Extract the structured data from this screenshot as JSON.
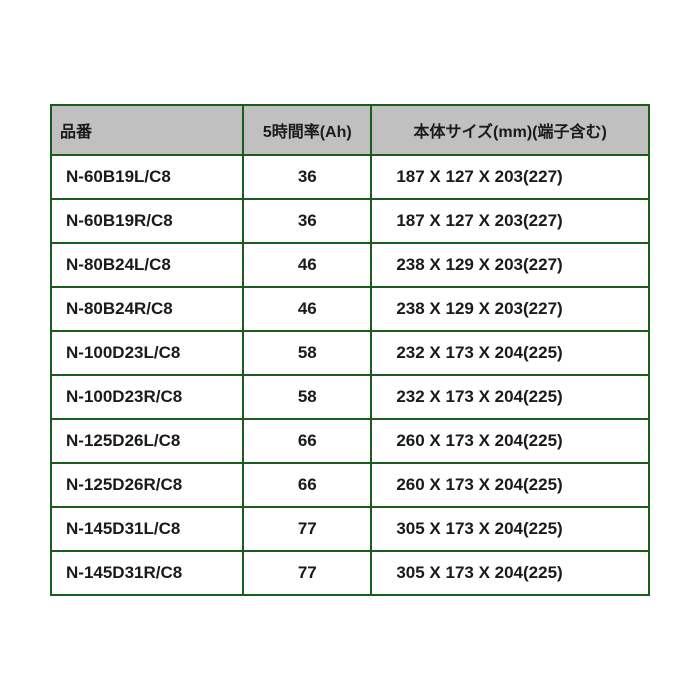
{
  "table": {
    "columns": [
      {
        "label": "品番",
        "class": "col-part"
      },
      {
        "label": "5時間率(Ah)",
        "class": "col-rate"
      },
      {
        "label": "本体サイズ(mm)(端子含む)",
        "class": "col-size"
      }
    ],
    "rows": [
      {
        "part": "N-60B19L/C8",
        "rate": "36",
        "size": "187 X 127 X 203(227)"
      },
      {
        "part": "N-60B19R/C8",
        "rate": "36",
        "size": "187 X 127 X 203(227)"
      },
      {
        "part": "N-80B24L/C8",
        "rate": "46",
        "size": "238 X 129 X 203(227)"
      },
      {
        "part": "N-80B24R/C8",
        "rate": "46",
        "size": "238 X 129 X 203(227)"
      },
      {
        "part": "N-100D23L/C8",
        "rate": "58",
        "size": "232 X 173 X 204(225)"
      },
      {
        "part": "N-100D23R/C8",
        "rate": "58",
        "size": "232 X 173 X 204(225)"
      },
      {
        "part": "N-125D26L/C8",
        "rate": "66",
        "size": "260 X 173 X 204(225)"
      },
      {
        "part": "N-125D26R/C8",
        "rate": "66",
        "size": "260 X 173 X 204(225)"
      },
      {
        "part": "N-145D31L/C8",
        "rate": "77",
        "size": "305 X 173 X 204(225)"
      },
      {
        "part": "N-145D31R/C8",
        "rate": "77",
        "size": "305 X 173 X 204(225)"
      }
    ],
    "header_bg": "#c0c0c0",
    "border_color": "#1a5c1a",
    "text_color": "#1a1a1a",
    "font_size": 17,
    "header_font_size": 16
  }
}
